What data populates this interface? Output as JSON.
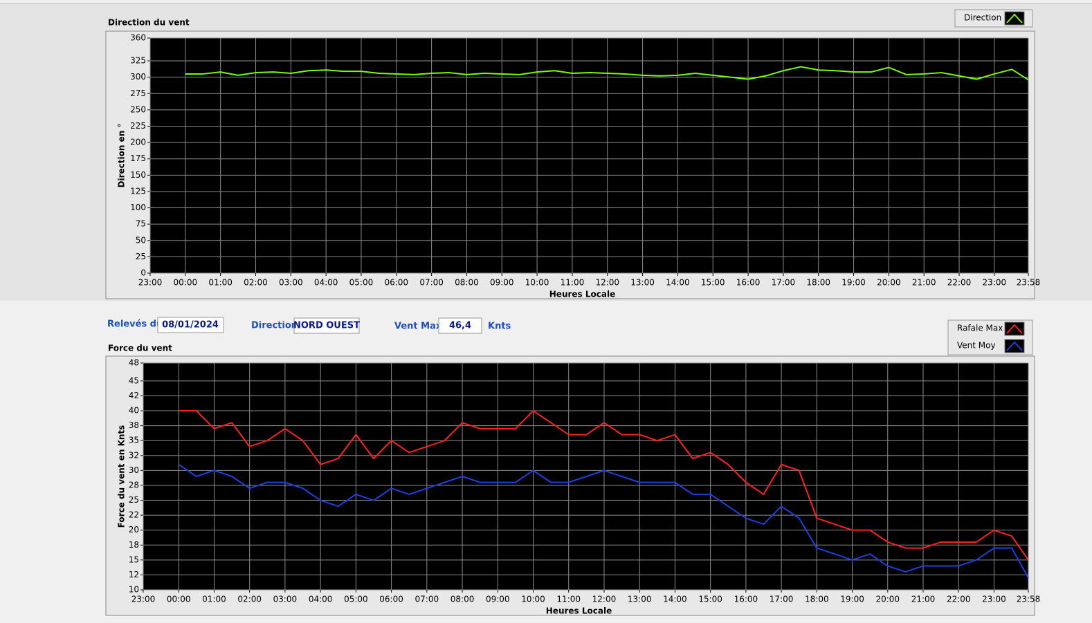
{
  "chart_data": [
    {
      "type": "line",
      "title": "Direction du vent",
      "xlabel": "Heures Locale",
      "ylabel": "Direction en °",
      "x": [
        0,
        0.5,
        1,
        1.5,
        2,
        2.5,
        3,
        3.5,
        4,
        4.5,
        5,
        5.5,
        6,
        6.5,
        7,
        7.5,
        8,
        8.5,
        9,
        9.5,
        10,
        10.5,
        11,
        11.5,
        12,
        12.5,
        13,
        13.5,
        14,
        14.5,
        15,
        15.5,
        16,
        16.5,
        17,
        17.5,
        18,
        18.5,
        19,
        19.5,
        20,
        20.5,
        21,
        21.5,
        22,
        22.5,
        23,
        23.5,
        23.967
      ],
      "series": [
        {
          "name": "Direction",
          "color": "#7cfc00",
          "values": [
            305,
            305,
            308,
            303,
            307,
            308,
            306,
            310,
            311,
            309,
            309,
            306,
            305,
            304,
            306,
            307,
            304,
            306,
            305,
            304,
            308,
            310,
            306,
            307,
            306,
            305,
            303,
            302,
            303,
            306,
            303,
            300,
            297,
            302,
            310,
            316,
            311,
            310,
            308,
            308,
            315,
            304,
            305,
            307,
            302,
            297,
            305,
            312,
            296
          ]
        }
      ],
      "xlim": [
        -1,
        23.967
      ],
      "xticks": [
        {
          "value": -1,
          "label": "23:00"
        },
        {
          "value": 0,
          "label": "00:00"
        },
        {
          "value": 1,
          "label": "01:00"
        },
        {
          "value": 2,
          "label": "02:00"
        },
        {
          "value": 3,
          "label": "03:00"
        },
        {
          "value": 4,
          "label": "04:00"
        },
        {
          "value": 5,
          "label": "05:00"
        },
        {
          "value": 6,
          "label": "06:00"
        },
        {
          "value": 7,
          "label": "07:00"
        },
        {
          "value": 8,
          "label": "08:00"
        },
        {
          "value": 9,
          "label": "09:00"
        },
        {
          "value": 10,
          "label": "10:00"
        },
        {
          "value": 11,
          "label": "11:00"
        },
        {
          "value": 12,
          "label": "12:00"
        },
        {
          "value": 13,
          "label": "13:00"
        },
        {
          "value": 14,
          "label": "14:00"
        },
        {
          "value": 15,
          "label": "15:00"
        },
        {
          "value": 16,
          "label": "16:00"
        },
        {
          "value": 17,
          "label": "17:00"
        },
        {
          "value": 18,
          "label": "18:00"
        },
        {
          "value": 19,
          "label": "19:00"
        },
        {
          "value": 20,
          "label": "20:00"
        },
        {
          "value": 21,
          "label": "21:00"
        },
        {
          "value": 22,
          "label": "22:00"
        },
        {
          "value": 23,
          "label": "23:00"
        },
        {
          "value": 23.967,
          "label": "23:58"
        }
      ],
      "ylim": [
        0,
        360
      ],
      "yticks": [
        0,
        25,
        50,
        75,
        100,
        125,
        150,
        175,
        200,
        225,
        250,
        275,
        300,
        325,
        360
      ],
      "grid": true,
      "legend": "top-right"
    },
    {
      "type": "line",
      "title": "Force du vent",
      "xlabel": "Heures Locale",
      "ylabel": "Force du vent en Knts",
      "x": [
        0,
        0.5,
        1,
        1.5,
        2,
        2.5,
        3,
        3.5,
        4,
        4.5,
        5,
        5.5,
        6,
        6.5,
        7,
        7.5,
        8,
        8.5,
        9,
        9.5,
        10,
        10.5,
        11,
        11.5,
        12,
        12.5,
        13,
        13.5,
        14,
        14.5,
        15,
        15.5,
        16,
        16.5,
        17,
        17.5,
        18,
        18.5,
        19,
        19.5,
        20,
        20.5,
        21,
        21.5,
        22,
        22.5,
        23,
        23.5,
        23.967
      ],
      "series": [
        {
          "name": "Rafale Max",
          "color": "#ff2020",
          "values": [
            40,
            40,
            37,
            38,
            34,
            35,
            37,
            35,
            31,
            32,
            36,
            32,
            35,
            33,
            34,
            35,
            38,
            37,
            37,
            37,
            40,
            38,
            36,
            36,
            38,
            36,
            36,
            35,
            36,
            32,
            33,
            31,
            28,
            26,
            31,
            30,
            22,
            21,
            20,
            20,
            18,
            17,
            17,
            18,
            18,
            18,
            20,
            19,
            15
          ]
        },
        {
          "name": "Vent Moy",
          "color": "#1f3fdf",
          "values": [
            31,
            29,
            30,
            29,
            27,
            28,
            28,
            27,
            25,
            24,
            26,
            25,
            27,
            26,
            27,
            28,
            29,
            28,
            28,
            28,
            30,
            28,
            28,
            29,
            30,
            29,
            28,
            28,
            28,
            26,
            26,
            24,
            22,
            21,
            24,
            22,
            17,
            16,
            15,
            16,
            14,
            13,
            14,
            14,
            14,
            15,
            17,
            17,
            12
          ]
        }
      ],
      "xlim": [
        -1,
        23.967
      ],
      "xticks": [
        {
          "value": -1,
          "label": "23:00"
        },
        {
          "value": 0,
          "label": "00:00"
        },
        {
          "value": 1,
          "label": "01:00"
        },
        {
          "value": 2,
          "label": "02:00"
        },
        {
          "value": 3,
          "label": "03:00"
        },
        {
          "value": 4,
          "label": "04:00"
        },
        {
          "value": 5,
          "label": "05:00"
        },
        {
          "value": 6,
          "label": "06:00"
        },
        {
          "value": 7,
          "label": "07:00"
        },
        {
          "value": 8,
          "label": "08:00"
        },
        {
          "value": 9,
          "label": "09:00"
        },
        {
          "value": 10,
          "label": "10:00"
        },
        {
          "value": 11,
          "label": "11:00"
        },
        {
          "value": 12,
          "label": "12:00"
        },
        {
          "value": 13,
          "label": "13:00"
        },
        {
          "value": 14,
          "label": "14:00"
        },
        {
          "value": 15,
          "label": "15:00"
        },
        {
          "value": 16,
          "label": "16:00"
        },
        {
          "value": 17,
          "label": "17:00"
        },
        {
          "value": 18,
          "label": "18:00"
        },
        {
          "value": 19,
          "label": "19:00"
        },
        {
          "value": 20,
          "label": "20:00"
        },
        {
          "value": 21,
          "label": "21:00"
        },
        {
          "value": 22,
          "label": "22:00"
        },
        {
          "value": 23,
          "label": "23:00"
        },
        {
          "value": 23.967,
          "label": "23:58"
        }
      ],
      "ylim": [
        10,
        48
      ],
      "yticks": [
        10,
        {
          "value": 12.5,
          "label": "12"
        },
        15,
        {
          "value": 17.5,
          "label": "18"
        },
        20,
        {
          "value": 22.5,
          "label": "22"
        },
        25,
        {
          "value": 27.5,
          "label": "28"
        },
        30,
        {
          "value": 32.5,
          "label": "32"
        },
        35,
        {
          "value": 37.5,
          "label": "38"
        },
        40,
        {
          "value": 42.5,
          "label": "42"
        },
        45,
        48
      ],
      "grid": true,
      "legend": "top-right"
    }
  ],
  "form": {
    "date_label": "Relevés du",
    "date": "08/01/2024",
    "direction_label": "Direction",
    "direction": "NORD OUEST",
    "vent_max_label": "Vent Max",
    "vent_max": "46,4",
    "unit": "Knts"
  }
}
